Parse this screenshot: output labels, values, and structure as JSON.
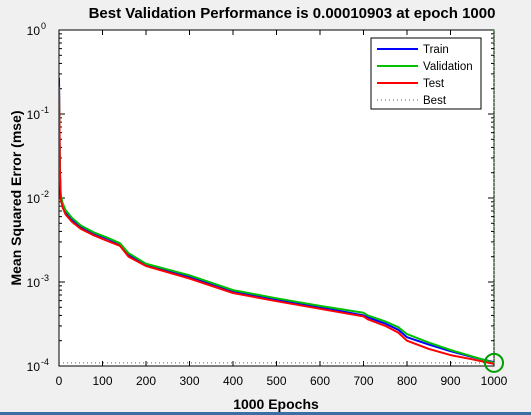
{
  "chart_data": {
    "type": "line",
    "title": "Best Validation Performance is 0.00010903 at epoch 1000",
    "xlabel": "1000 Epochs",
    "ylabel": "Mean Squared Error  (mse)",
    "xlim": [
      0,
      1000
    ],
    "ylim": [
      0.0001,
      1
    ],
    "yscale": "log",
    "grid": false,
    "legend_position": "top-right",
    "x_ticks": [
      "0",
      "100",
      "200",
      "300",
      "400",
      "500",
      "600",
      "700",
      "800",
      "900",
      "1000"
    ],
    "y_ticks": [
      {
        "base": "10",
        "exp": "0"
      },
      {
        "base": "10",
        "exp": "-1"
      },
      {
        "base": "10",
        "exp": "-2"
      },
      {
        "base": "10",
        "exp": "-3"
      },
      {
        "base": "10",
        "exp": "-4"
      }
    ],
    "series": [
      {
        "name": "Train",
        "color": "#0000ff",
        "style": "solid",
        "x": [
          0,
          2,
          4,
          8,
          15,
          30,
          50,
          80,
          110,
          140,
          160,
          200,
          300,
          400,
          500,
          600,
          700,
          710,
          750,
          780,
          800,
          850,
          900,
          950,
          1000
        ],
        "y": [
          0.27,
          0.02,
          0.0105,
          0.0082,
          0.0068,
          0.0055,
          0.0045,
          0.0038,
          0.0033,
          0.0028,
          0.0021,
          0.0016,
          0.00115,
          0.00078,
          0.00062,
          0.0005,
          0.0004,
          0.00038,
          0.00032,
          0.00027,
          0.00022,
          0.00018,
          0.00015,
          0.000128,
          0.000111
        ]
      },
      {
        "name": "Validation",
        "color": "#00c000",
        "style": "solid",
        "x": [
          0,
          2,
          4,
          8,
          15,
          30,
          50,
          80,
          110,
          140,
          160,
          200,
          300,
          400,
          500,
          600,
          700,
          710,
          750,
          780,
          800,
          850,
          900,
          950,
          1000
        ],
        "y": [
          0.2,
          0.021,
          0.011,
          0.0088,
          0.0072,
          0.0058,
          0.0047,
          0.0039,
          0.0034,
          0.0029,
          0.0022,
          0.00165,
          0.0012,
          0.0008,
          0.00064,
          0.00052,
          0.00043,
          0.0004,
          0.00034,
          0.00029,
          0.00024,
          0.00019,
          0.000155,
          0.00013,
          0.000109
        ]
      },
      {
        "name": "Test",
        "color": "#ff0000",
        "style": "solid",
        "x": [
          0,
          2,
          4,
          8,
          15,
          30,
          50,
          80,
          110,
          140,
          160,
          200,
          300,
          400,
          500,
          600,
          700,
          710,
          750,
          780,
          800,
          850,
          900,
          950,
          1000
        ],
        "y": [
          0.21,
          0.02,
          0.0098,
          0.0078,
          0.0064,
          0.0052,
          0.0043,
          0.0036,
          0.0031,
          0.0027,
          0.002,
          0.00155,
          0.0011,
          0.00074,
          0.00059,
          0.00048,
          0.00039,
          0.00036,
          0.0003,
          0.00025,
          0.0002,
          0.00016,
          0.000135,
          0.00012,
          0.000106
        ]
      },
      {
        "name": "Best",
        "color": "#00a000",
        "style": "dotted",
        "best_epoch": 1000,
        "best_value": 0.00010903
      }
    ]
  }
}
